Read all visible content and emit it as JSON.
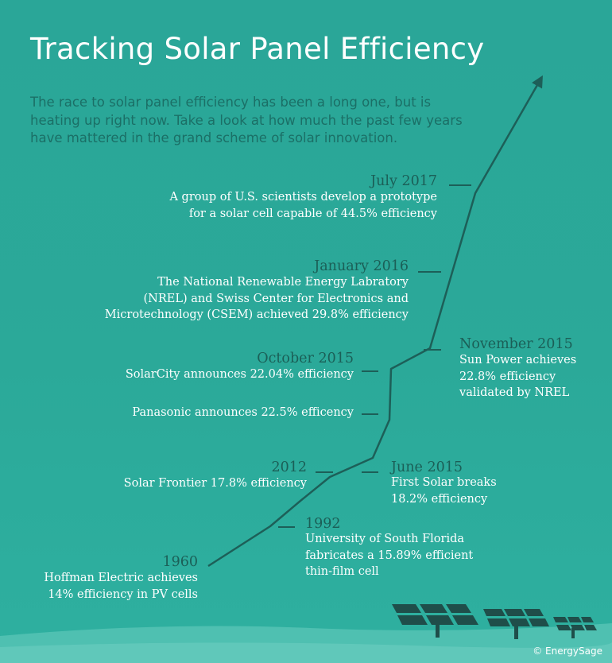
{
  "title": "Tracking Solar Panel Efficiency",
  "subtitle": "The race to solar panel efficiency has been a long one, but is heating up right now. Take a look at how much the past few years have mattered in the grand scheme of solar innovation.",
  "credit": "© EnergySage",
  "chart_data": {
    "type": "line",
    "title": "Tracking Solar Panel Efficiency",
    "xlabel": "",
    "ylabel": "",
    "events": [
      {
        "year": "1960",
        "lines": [
          "Hoffman Electric achieves",
          "14% efficiency in PV cells"
        ],
        "efficiency": 14
      },
      {
        "year": "1992",
        "lines": [
          "University of South Florida",
          "fabricates a 15.89% efficient",
          "thin-film cell"
        ],
        "efficiency": 15.89
      },
      {
        "year": "2012",
        "lines": [
          "Solar Frontier 17.8% efficiency"
        ],
        "efficiency": 17.8
      },
      {
        "year": "June 2015",
        "lines": [
          "First Solar breaks",
          "18.2% efficiency"
        ],
        "efficiency": 18.2
      },
      {
        "year": "",
        "lines": [
          "Panasonic announces 22.5% efficency"
        ],
        "efficiency": 22.5
      },
      {
        "year": "October 2015",
        "lines": [
          "SolarCity announces 22.04% efficiency"
        ],
        "efficiency": 22.04
      },
      {
        "year": "November 2015",
        "lines": [
          "Sun Power achieves",
          "22.8% efficiency",
          "validated by NREL"
        ],
        "efficiency": 22.8
      },
      {
        "year": "January 2016",
        "lines": [
          "The National Renewable Energy Labratory",
          "(NREL) and Swiss Center for Electronics and",
          "Microtechnology (CSEM) achieved 29.8% efficiency"
        ],
        "efficiency": 29.8
      },
      {
        "year": "July 2017",
        "lines": [
          "A group of U.S. scientists develop a prototype",
          "for a solar cell capable of 44.5% efficiency"
        ],
        "efficiency": 44.5
      }
    ]
  }
}
